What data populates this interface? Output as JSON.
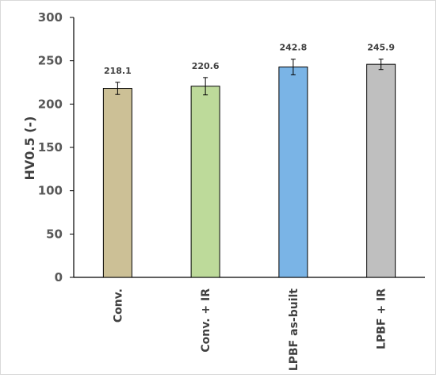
{
  "chart_data": {
    "type": "bar",
    "categories": [
      "Conv.",
      "Conv. + IR",
      "LPBF as-built",
      "LPBF + IR"
    ],
    "values": [
      218.1,
      220.6,
      242.8,
      245.9
    ],
    "errors": [
      7,
      10,
      9,
      6
    ],
    "data_labels": [
      "218.1",
      "220.6",
      "242.8",
      "245.9"
    ],
    "colors": [
      "#CCC096",
      "#BDDA9A",
      "#7AB4E6",
      "#BFBFBF"
    ],
    "ylabel": "HV0.5 (-)",
    "ylim": [
      0,
      300
    ],
    "yticks": [
      0,
      50,
      100,
      150,
      200,
      250,
      300
    ],
    "grid": false,
    "legend": "none"
  }
}
